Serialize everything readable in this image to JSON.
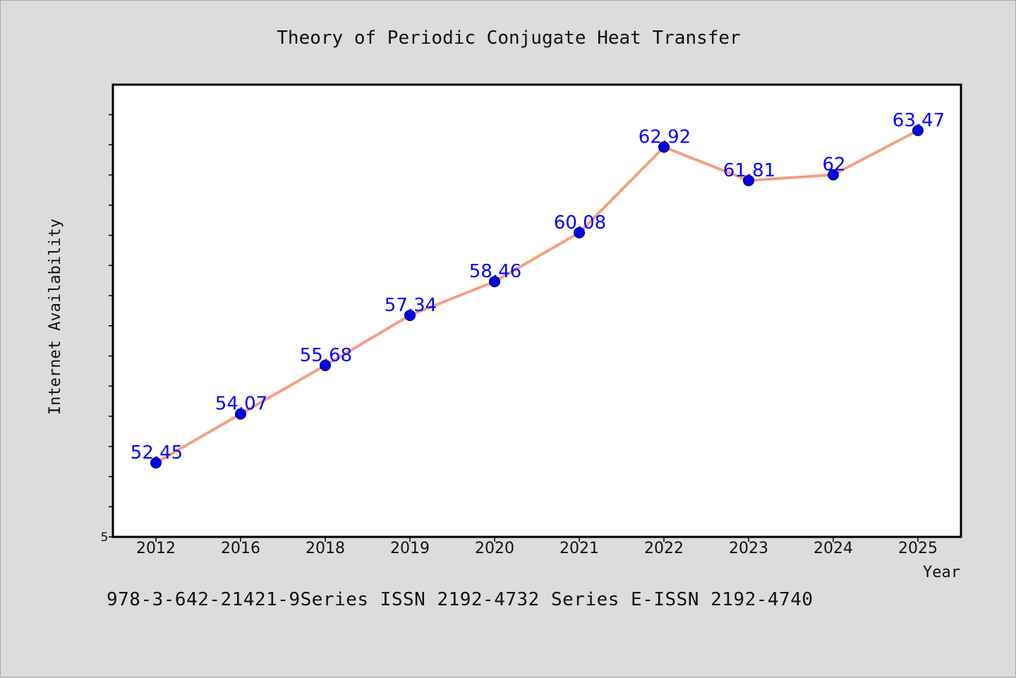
{
  "footer_note": "978-3-642-21421-9Series ISSN 2192-4732 Series E-ISSN 2192-4740",
  "colors": {
    "background": "#dcdcdc",
    "plot_background": "#ffffff",
    "line": "#f4a07f",
    "marker": "#0000ee",
    "data_label": "#0000ff",
    "text": "#111111"
  },
  "chart_data": {
    "type": "line",
    "title": "Theory of Periodic Conjugate Heat Transfer",
    "xlabel": "Year",
    "ylabel": "Internet Availability",
    "categories": [
      "2012",
      "2016",
      "2018",
      "2019",
      "2020",
      "2021",
      "2022",
      "2023",
      "2024",
      "2025"
    ],
    "series": [
      {
        "values": [
          52.45,
          54.07,
          55.68,
          57.34,
          58.46,
          60.08,
          62.92,
          61.81,
          62.0,
          63.47
        ]
      }
    ],
    "data_labels": [
      "52.45",
      "54.07",
      "55.68",
      "57.34",
      "58.46",
      "60.08",
      "62.92",
      "61.81",
      "62",
      "63.47"
    ],
    "y_tick_labels": [
      "5"
    ],
    "ylim": [
      50,
      65
    ],
    "grid": false,
    "legend": "none"
  }
}
